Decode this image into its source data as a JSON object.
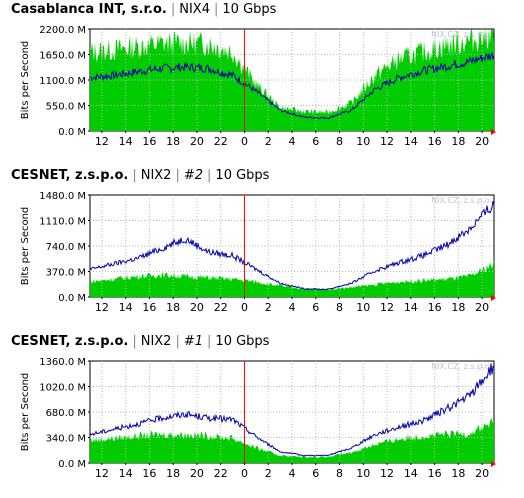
{
  "charts": [
    {
      "title": "Casablanca INT, s.r.o.",
      "exchange": "NIX4",
      "port": "",
      "speed": "10 Gbps",
      "watermark": "NIX.CZ, z.s.p.o.",
      "ylabel": "Bits per Second",
      "yticks": [
        "0.0 M",
        "550.0 M",
        "1100.0 M",
        "1650.0 M",
        "2200.0 M"
      ],
      "ymax": 2200,
      "xticks": [
        "12",
        "14",
        "16",
        "18",
        "20",
        "22",
        "0",
        "2",
        "4",
        "6",
        "8",
        "10",
        "12",
        "14",
        "16",
        "18",
        "20"
      ],
      "in_peak": [
        1700,
        1750,
        1820,
        1880,
        1900,
        1880,
        1700,
        1000,
        500,
        420,
        400,
        600,
        1200,
        1550,
        1700,
        1850,
        1950,
        2100
      ],
      "out_line": [
        1150,
        1200,
        1280,
        1350,
        1380,
        1350,
        1200,
        850,
        450,
        300,
        280,
        450,
        900,
        1150,
        1300,
        1400,
        1500,
        1650
      ]
    },
    {
      "title": "CESNET, z.s.p.o.",
      "exchange": "NIX2",
      "port": "#2",
      "speed": "10 Gbps",
      "watermark": "NIX.CZ, z.s.p.o.",
      "ylabel": "Bits per Second",
      "yticks": [
        "0.0 M",
        "370.0 M",
        "740.0 M",
        "1110.0 M",
        "1480.0 M"
      ],
      "ymax": 1480,
      "xticks": [
        "12",
        "14",
        "16",
        "18",
        "20",
        "22",
        "0",
        "2",
        "4",
        "6",
        "8",
        "10",
        "12",
        "14",
        "16",
        "18",
        "20"
      ],
      "in_peak": [
        220,
        260,
        300,
        320,
        300,
        280,
        260,
        220,
        160,
        120,
        110,
        140,
        180,
        220,
        240,
        260,
        300,
        480
      ],
      "out_line": [
        400,
        480,
        560,
        700,
        850,
        650,
        600,
        400,
        200,
        120,
        110,
        200,
        380,
        500,
        600,
        750,
        1000,
        1350
      ]
    },
    {
      "title": "CESNET, z.s.p.o.",
      "exchange": "NIX2",
      "port": "#1",
      "speed": "10 Gbps",
      "watermark": "NIX.CZ, z.s.p.o.",
      "ylabel": "Bits per Second",
      "yticks": [
        "0.0 M",
        "340.0 M",
        "680.0 M",
        "1020.0 M",
        "1360.0 M"
      ],
      "ymax": 1360,
      "xticks": [
        "12",
        "14",
        "16",
        "18",
        "20",
        "22",
        "0",
        "2",
        "4",
        "6",
        "8",
        "10",
        "12",
        "14",
        "16",
        "18",
        "20"
      ],
      "in_peak": [
        300,
        330,
        360,
        380,
        380,
        360,
        330,
        200,
        100,
        80,
        80,
        140,
        250,
        320,
        360,
        380,
        400,
        550
      ],
      "out_line": [
        380,
        450,
        520,
        600,
        650,
        600,
        580,
        350,
        150,
        100,
        100,
        200,
        380,
        480,
        560,
        720,
        900,
        1300
      ]
    }
  ],
  "colors": {
    "in": "#00cc00",
    "out": "#0000aa",
    "now": "#ff0000",
    "grid": "#bbbbbb"
  }
}
